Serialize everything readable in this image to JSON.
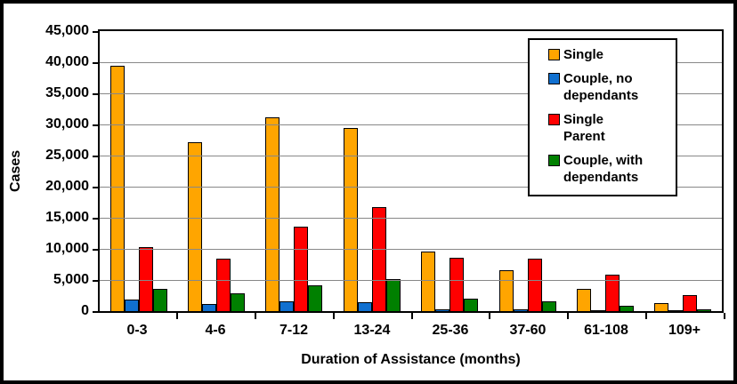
{
  "chart_data": {
    "type": "bar",
    "title": "",
    "xlabel": "Duration of Assistance (months)",
    "ylabel": "Cases",
    "categories": [
      "0-3",
      "4-6",
      "7-12",
      "13-24",
      "25-36",
      "37-60",
      "61-108",
      "109+"
    ],
    "series": [
      {
        "name": "Single",
        "color": "#FFA500",
        "legend_lines": [
          "Single"
        ],
        "values": [
          39400,
          27200,
          31100,
          29400,
          9500,
          6600,
          3500,
          1300
        ]
      },
      {
        "name": "Couple, no dependants",
        "color": "#1070D0",
        "legend_lines": [
          "Couple, no",
          "dependants"
        ],
        "values": [
          1800,
          1200,
          1500,
          1400,
          300,
          300,
          150,
          100
        ]
      },
      {
        "name": "Single Parent",
        "color": "#FF0000",
        "legend_lines": [
          "Single",
          "Parent"
        ],
        "values": [
          10300,
          8400,
          13600,
          16700,
          8600,
          8400,
          5900,
          2600
        ]
      },
      {
        "name": "Couple, with dependants",
        "color": "#008000",
        "legend_lines": [
          "Couple, with",
          "dependants"
        ],
        "values": [
          3500,
          2800,
          4200,
          5100,
          2000,
          1500,
          800,
          300
        ]
      }
    ],
    "ylim": [
      0,
      45000
    ],
    "ytick_step": 5000,
    "grid": true,
    "gridline_color": "#888888",
    "legend_position": "top-right-overlay"
  }
}
